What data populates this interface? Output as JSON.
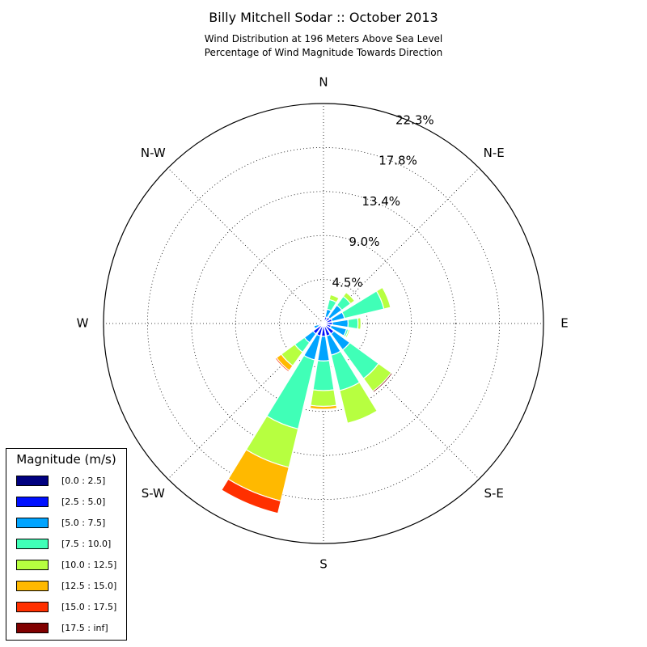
{
  "title": "Billy Mitchell Sodar :: October 2013",
  "subtitle_lines": [
    "Wind Distribution at 196 Meters Above Sea Level",
    "Percentage of Wind Magnitude Towards Direction"
  ],
  "legend": {
    "title": "Magnitude (m/s)",
    "entries": [
      {
        "label": "[0.0 : 2.5]",
        "color": "#000080"
      },
      {
        "label": "[2.5 : 5.0]",
        "color": "#0010ff"
      },
      {
        "label": "[5.0 : 7.5]",
        "color": "#00a4ff"
      },
      {
        "label": "[7.5 : 10.0]",
        "color": "#40ffb7"
      },
      {
        "label": "[10.0 : 12.5]",
        "color": "#b7ff40"
      },
      {
        "label": "[12.5 : 15.0]",
        "color": "#ffb900"
      },
      {
        "label": "[15.0 : 17.5]",
        "color": "#ff3000"
      },
      {
        "label": "[17.5 : inf]",
        "color": "#800000"
      }
    ]
  },
  "chart_data": {
    "type": "windrose",
    "compass_labels": [
      "N",
      "N-E",
      "E",
      "S-E",
      "S",
      "S-W",
      "W",
      "N-W"
    ],
    "radial_tick_labels": [
      "4.5%",
      "9.0%",
      "13.4%",
      "17.8%",
      "22.3%"
    ],
    "radial_ticks": [
      4.46,
      8.92,
      13.38,
      17.84,
      22.3
    ],
    "rmax": 22.3,
    "grid": true,
    "legend_position": "bottom-left",
    "direction_step_deg": 22.5,
    "direction_bearings_deg": [
      0,
      22.5,
      45,
      67.5,
      90,
      112.5,
      135,
      157.5,
      180,
      202.5,
      225,
      247.5,
      270,
      292.5,
      315,
      337.5
    ],
    "bins": [
      "[0.0 : 2.5]",
      "[2.5 : 5.0]",
      "[5.0 : 7.5]",
      "[7.5 : 10.0]",
      "[10.0 : 12.5]",
      "[12.5 : 15.0]",
      "[15.0 : 17.5]",
      "[17.5 : inf]"
    ],
    "cumulative_percent_by_direction": [
      [
        0.1,
        0.2,
        0.4,
        0.45,
        0.5,
        0.5,
        0.5,
        0.5
      ],
      [
        0.1,
        0.7,
        1.5,
        2.5,
        3.0,
        3.0,
        3.0,
        3.0
      ],
      [
        0.1,
        0.8,
        2.3,
        3.4,
        3.9,
        3.9,
        3.9,
        3.9
      ],
      [
        0.1,
        0.9,
        2.2,
        6.3,
        7.0,
        7.0,
        7.0,
        7.0
      ],
      [
        0.1,
        0.9,
        2.5,
        3.5,
        3.8,
        3.8,
        3.8,
        3.8
      ],
      [
        0.1,
        0.8,
        2.4,
        2.6,
        2.75,
        2.75,
        2.75,
        2.75
      ],
      [
        0.1,
        1.3,
        3.3,
        6.9,
        8.5,
        8.5,
        8.5,
        8.65
      ],
      [
        0.1,
        1.3,
        3.3,
        7.0,
        10.4,
        10.4,
        10.4,
        10.4
      ],
      [
        0.1,
        1.3,
        3.8,
        6.8,
        8.4,
        8.7,
        8.7,
        8.7
      ],
      [
        0.1,
        1.3,
        3.8,
        11.0,
        15.0,
        18.5,
        19.8,
        19.8
      ],
      [
        0.1,
        1.3,
        2.4,
        3.6,
        5.3,
        5.9,
        6.05,
        6.05
      ],
      [
        0.1,
        0.5,
        1.0,
        1.0,
        1.0,
        1.0,
        1.0,
        1.0
      ],
      [
        0.1,
        0.4,
        0.4,
        0.4,
        0.4,
        0.4,
        0.4,
        0.4
      ],
      [
        0.1,
        0.4,
        0.4,
        0.4,
        0.4,
        0.4,
        0.4,
        0.4
      ],
      [
        0.05,
        0.1,
        0.1,
        0.1,
        0.1,
        0.1,
        0.1,
        0.1
      ],
      [
        0.05,
        0.1,
        0.1,
        0.1,
        0.1,
        0.1,
        0.1,
        0.1
      ]
    ]
  }
}
